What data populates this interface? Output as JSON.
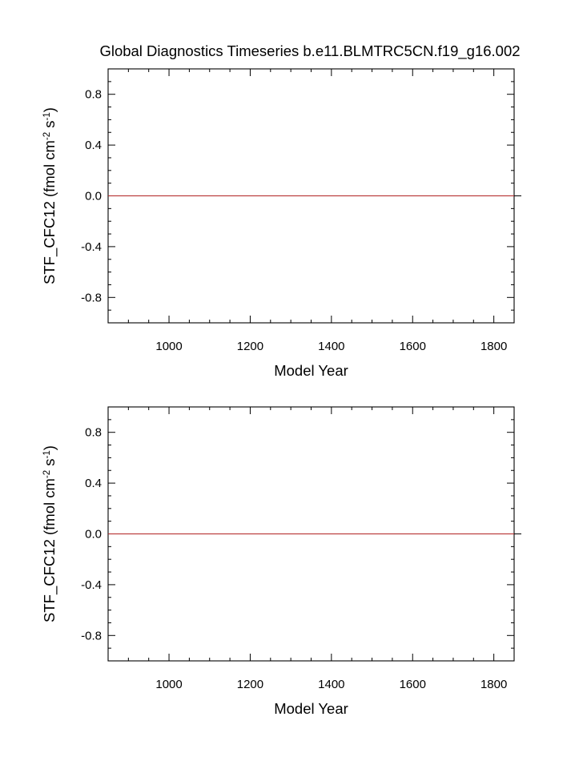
{
  "title": "Global Diagnostics Timeseries b.e11.BLMTRC5CN.f19_g16.002",
  "colors": {
    "axes": "#000000",
    "zero_line": "#000000",
    "series": "#b22222",
    "background": "#ffffff"
  },
  "chart_data": [
    {
      "type": "line",
      "xlabel": "Model Year",
      "ylabel_main": "STF_CFC12 (fmol cm",
      "ylabel_sup1": "-2",
      "ylabel_mid": " s",
      "ylabel_sup2": "-1",
      "ylabel_end": ")",
      "xlim": [
        850,
        1850
      ],
      "ylim": [
        -1,
        1
      ],
      "xticks": [
        1000,
        1200,
        1400,
        1600,
        1800
      ],
      "xtick_labels": [
        "1000",
        "1200",
        "1400",
        "1600",
        "1800"
      ],
      "yticks": [
        0.8,
        0.4,
        0.0,
        -0.4,
        -0.8
      ],
      "ytick_labels": [
        "0.8",
        "0.4",
        "0.0",
        "-0.4",
        "-0.8"
      ],
      "reference_line_y": 0,
      "series": [
        {
          "x": [
            850,
            1850
          ],
          "values": [
            0,
            0
          ]
        }
      ]
    },
    {
      "type": "line",
      "xlabel": "Model Year",
      "ylabel_main": "STF_CFC12 (fmol cm",
      "ylabel_sup1": "-2",
      "ylabel_mid": " s",
      "ylabel_sup2": "-1",
      "ylabel_end": ")",
      "xlim": [
        850,
        1850
      ],
      "ylim": [
        -1,
        1
      ],
      "xticks": [
        1000,
        1200,
        1400,
        1600,
        1800
      ],
      "xtick_labels": [
        "1000",
        "1200",
        "1400",
        "1600",
        "1800"
      ],
      "yticks": [
        0.8,
        0.4,
        0.0,
        -0.4,
        -0.8
      ],
      "ytick_labels": [
        "0.8",
        "0.4",
        "0.0",
        "-0.4",
        "-0.8"
      ],
      "reference_line_y": 0,
      "series": [
        {
          "x": [
            850,
            1850
          ],
          "values": [
            0,
            0
          ]
        }
      ]
    }
  ]
}
